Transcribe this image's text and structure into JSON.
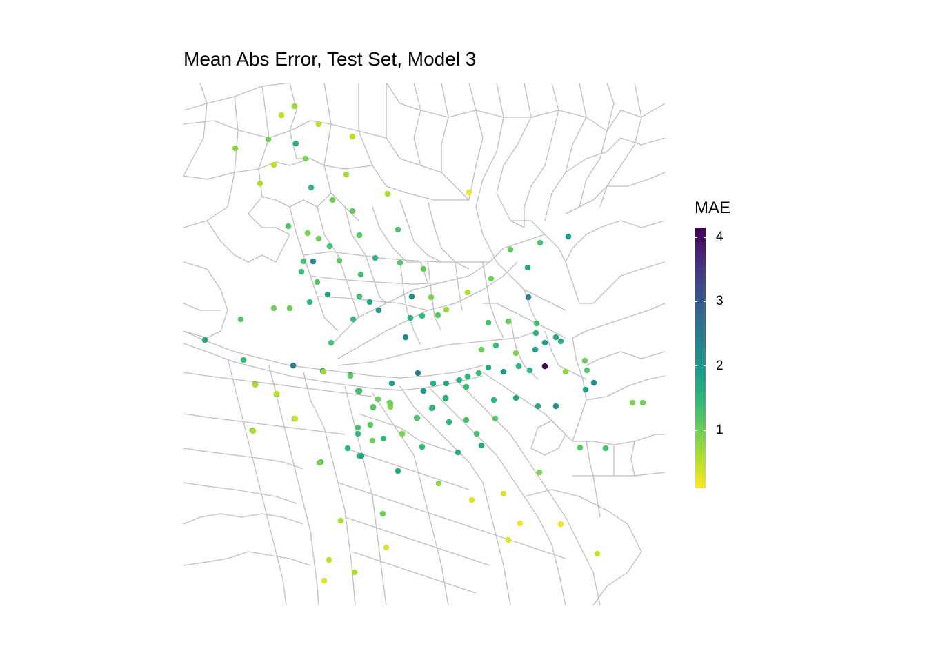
{
  "title": "Mean Abs Error, Test Set, Model 3",
  "legend": {
    "title": "MAE",
    "ticks": [
      "1",
      "2",
      "3",
      "4"
    ],
    "tick_values": [
      1,
      2,
      3,
      4
    ],
    "min": 0.1,
    "max": 4.15,
    "colors": [
      "#fde725",
      "#b5de2b",
      "#6ece58",
      "#35b779",
      "#1f9e89",
      "#26828e",
      "#31688e",
      "#3e4989",
      "#482878",
      "#440154"
    ]
  },
  "map": {
    "boundary_color": "#bebebe",
    "background": "#ffffff"
  },
  "chart_data": {
    "type": "scatter",
    "title": "Mean Abs Error, Test Set, Model 3",
    "color_scale": "viridis (reversed)",
    "color_variable": "MAE",
    "points_mae": [
      0.7,
      0.5,
      0.5,
      0.5,
      0.8,
      1.0,
      1.6,
      0.9,
      0.5,
      0.6,
      0.7,
      1.5,
      1.0,
      0.6,
      1.1,
      0.2,
      1.2,
      0.9,
      1.0,
      1.3,
      1.2,
      1.3,
      1.3,
      1.4,
      2.3,
      1.1,
      1.2,
      1.8,
      1.5,
      1.3,
      1.5,
      1.2,
      1.1,
      1.4,
      1.8,
      2.0,
      2.2,
      0.9,
      0.7,
      0.6,
      1.0,
      1.1,
      1.3,
      1.9,
      2.5,
      1.8,
      2.3,
      1.6,
      1.2,
      1.5,
      1.4,
      1.3,
      1.0,
      1.0,
      1.2,
      1.7,
      1.4,
      2.5,
      2.3,
      2.1,
      1.9,
      2.4,
      2.0,
      1.6,
      1.9,
      1.7,
      1.6,
      1.5,
      1.4,
      1.7,
      2.0,
      1.6,
      1.5,
      4.1,
      1.9,
      2.1,
      1.8,
      1.6,
      1.5,
      1.3,
      1.1,
      1.3,
      1.4,
      1.0,
      0.9,
      0.8,
      1.0,
      1.2,
      2.2,
      1.9,
      2.1,
      1.7,
      1.8,
      1.5,
      1.4,
      1.4,
      1.6,
      1.3,
      1.2,
      1.3,
      1.7,
      1.8,
      1.6,
      1.6,
      1.5,
      1.0,
      1.2,
      1.0,
      1.3,
      1.2,
      1.6,
      1.5,
      1.4,
      1.3,
      1.6,
      1.2,
      1.3,
      1.7,
      1.6,
      1.8,
      1.7,
      1.5,
      0.8,
      1.3,
      1.2,
      1.3,
      0.9,
      1.0,
      0.9,
      0.8,
      0.3,
      0.3,
      0.2,
      0.3,
      0.2,
      0.4,
      0.3,
      0.3,
      0.5,
      0.6,
      0.6,
      1.0,
      0.9,
      0.5,
      0.6,
      0.6,
      0.4,
      0.7,
      1.1,
      1.3,
      1.2,
      1.0,
      1.0,
      0.9,
      1.2,
      1.4,
      1.5,
      1.5,
      1.5
    ]
  }
}
